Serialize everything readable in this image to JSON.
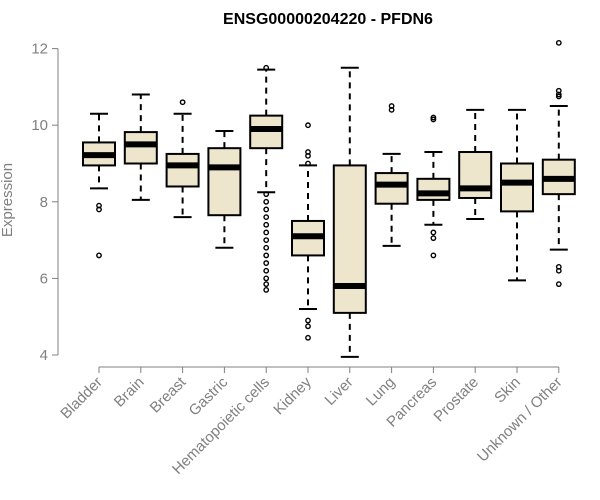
{
  "chart_data": {
    "type": "box",
    "title": "ENSG00000204220 - PFDN6",
    "ylabel": "Expression",
    "xlabel": "",
    "ylim": [
      4,
      12.2
    ],
    "yticks": [
      4,
      6,
      8,
      10,
      12
    ],
    "box_fill": "#ede6cc",
    "categories": [
      "Bladder",
      "Brain",
      "Breast",
      "Gastric",
      "Hematopoietic cells",
      "Kidney",
      "Liver",
      "Lung",
      "Pancreas",
      "Prostate",
      "Skin",
      "Unknown / Other"
    ],
    "boxes": [
      {
        "min": 8.35,
        "q1": 8.95,
        "median": 9.22,
        "q3": 9.55,
        "max": 10.3,
        "outliers": [
          7.9,
          7.8,
          6.6
        ]
      },
      {
        "min": 8.05,
        "q1": 9.0,
        "median": 9.5,
        "q3": 9.82,
        "max": 10.8,
        "outliers": []
      },
      {
        "min": 7.6,
        "q1": 8.4,
        "median": 8.95,
        "q3": 9.25,
        "max": 10.3,
        "outliers": [
          10.6
        ]
      },
      {
        "min": 6.8,
        "q1": 7.65,
        "median": 8.9,
        "q3": 9.4,
        "max": 9.85,
        "outliers": []
      },
      {
        "min": 8.25,
        "q1": 9.4,
        "median": 9.9,
        "q3": 10.25,
        "max": 11.45,
        "outliers": [
          11.5,
          8.2,
          8.0,
          7.8,
          7.6,
          7.4,
          7.2,
          7.0,
          6.8,
          6.6,
          6.4,
          6.2,
          6.0,
          5.85,
          5.7
        ]
      },
      {
        "min": 5.2,
        "q1": 6.6,
        "median": 7.1,
        "q3": 7.5,
        "max": 8.95,
        "outliers": [
          10.0,
          9.3,
          9.2,
          9.0,
          4.9,
          4.75,
          4.45
        ]
      },
      {
        "min": 3.95,
        "q1": 5.1,
        "median": 5.8,
        "q3": 8.95,
        "max": 11.5,
        "outliers": []
      },
      {
        "min": 6.85,
        "q1": 7.95,
        "median": 8.45,
        "q3": 8.75,
        "max": 9.25,
        "outliers": [
          10.5,
          10.4
        ]
      },
      {
        "min": 7.4,
        "q1": 8.05,
        "median": 8.22,
        "q3": 8.6,
        "max": 9.3,
        "outliers": [
          10.2,
          10.15,
          7.2,
          7.05,
          6.6
        ]
      },
      {
        "min": 7.55,
        "q1": 8.1,
        "median": 8.35,
        "q3": 9.3,
        "max": 10.4,
        "outliers": []
      },
      {
        "min": 5.95,
        "q1": 7.75,
        "median": 8.5,
        "q3": 9.0,
        "max": 10.4,
        "outliers": []
      },
      {
        "min": 6.75,
        "q1": 8.2,
        "median": 8.6,
        "q3": 9.1,
        "max": 10.5,
        "outliers": [
          12.15,
          10.9,
          10.8,
          10.75,
          6.3,
          6.2,
          5.85
        ]
      }
    ]
  }
}
